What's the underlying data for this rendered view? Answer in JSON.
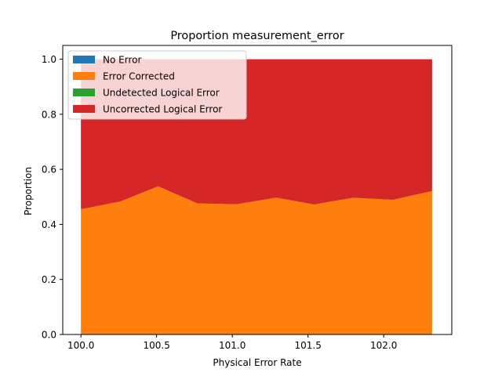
{
  "chart_data": {
    "type": "area",
    "stacked": true,
    "title": "Proportion measurement_error",
    "xlabel": "Physical Error Rate",
    "ylabel": "Proportion",
    "xlim": [
      99.88,
      102.45
    ],
    "ylim": [
      0.0,
      1.05
    ],
    "xticks": [
      100.0,
      100.5,
      101.0,
      101.5,
      102.0
    ],
    "xtick_labels": [
      "100.0",
      "100.5",
      "101.0",
      "101.5",
      "102.0"
    ],
    "yticks": [
      0.0,
      0.2,
      0.4,
      0.6,
      0.8,
      1.0
    ],
    "ytick_labels": [
      "0.0",
      "0.2",
      "0.4",
      "0.6",
      "0.8",
      "1.0"
    ],
    "grid": false,
    "legend_position": "top-left",
    "x": [
      100.0,
      100.26,
      100.51,
      100.77,
      101.03,
      101.29,
      101.54,
      101.8,
      102.06,
      102.32
    ],
    "series": [
      {
        "name": "No Error",
        "color": "#1f77b4",
        "values": [
          0,
          0,
          0,
          0,
          0,
          0,
          0,
          0,
          0,
          0
        ]
      },
      {
        "name": "Error Corrected",
        "color": "#ff7f0e",
        "values": [
          0.455,
          0.483,
          0.538,
          0.476,
          0.473,
          0.497,
          0.472,
          0.497,
          0.489,
          0.521
        ]
      },
      {
        "name": "Undetected Logical Error",
        "color": "#2ca02c",
        "values": [
          0,
          0,
          0,
          0,
          0,
          0,
          0,
          0,
          0,
          0
        ]
      },
      {
        "name": "Uncorrected Logical Error",
        "color": "#d62728",
        "values": [
          0.545,
          0.517,
          0.462,
          0.524,
          0.527,
          0.503,
          0.528,
          0.503,
          0.511,
          0.479
        ]
      }
    ]
  }
}
